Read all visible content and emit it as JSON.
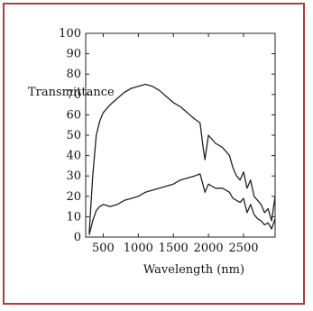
{
  "chart_data": {
    "type": "line",
    "title": "",
    "xlabel": "Wavelength (nm)",
    "ylabel": "Transmittance",
    "xlim": [
      250,
      2950
    ],
    "ylim": [
      0,
      100
    ],
    "xticks": [
      500,
      1000,
      1500,
      2000,
      2500
    ],
    "yticks": [
      0,
      10,
      20,
      30,
      40,
      50,
      60,
      70,
      80,
      90,
      100
    ],
    "grid": false,
    "legend": "none",
    "line_color": "#222222",
    "frame_color": "#b83a3a",
    "series": [
      {
        "x": [
          300,
          350,
          400,
          450,
          500,
          600,
          700,
          800,
          900,
          1000,
          1100,
          1200,
          1300,
          1400,
          1500,
          1600,
          1700,
          1800,
          1880,
          1920,
          1950,
          2000,
          2050,
          2100,
          2200,
          2300,
          2350,
          2400,
          2450,
          2500,
          2550,
          2600,
          2650,
          2700,
          2750,
          2800,
          2850,
          2900,
          2950
        ],
        "y": [
          2,
          30,
          50,
          57,
          61,
          65,
          68,
          71,
          73,
          74,
          75,
          74,
          72,
          69,
          66,
          64,
          61,
          58,
          56,
          45,
          38,
          50,
          48,
          46,
          44,
          40,
          34,
          30,
          28,
          32,
          24,
          28,
          20,
          18,
          16,
          12,
          14,
          8,
          20
        ]
      },
      {
        "x": [
          300,
          350,
          400,
          450,
          500,
          600,
          700,
          800,
          900,
          1000,
          1100,
          1200,
          1300,
          1400,
          1500,
          1600,
          1700,
          1800,
          1880,
          1920,
          1950,
          2000,
          2050,
          2100,
          2200,
          2300,
          2350,
          2400,
          2450,
          2500,
          2550,
          2600,
          2650,
          2700,
          2750,
          2800,
          2850,
          2900,
          2950
        ],
        "y": [
          1,
          8,
          13,
          15,
          16,
          15,
          16,
          18,
          19,
          20,
          22,
          23,
          24,
          25,
          26,
          28,
          29,
          30,
          31,
          26,
          22,
          26,
          25,
          24,
          24,
          22,
          19,
          18,
          17,
          19,
          12,
          16,
          11,
          9,
          8,
          6,
          7,
          4,
          9
        ]
      }
    ]
  }
}
